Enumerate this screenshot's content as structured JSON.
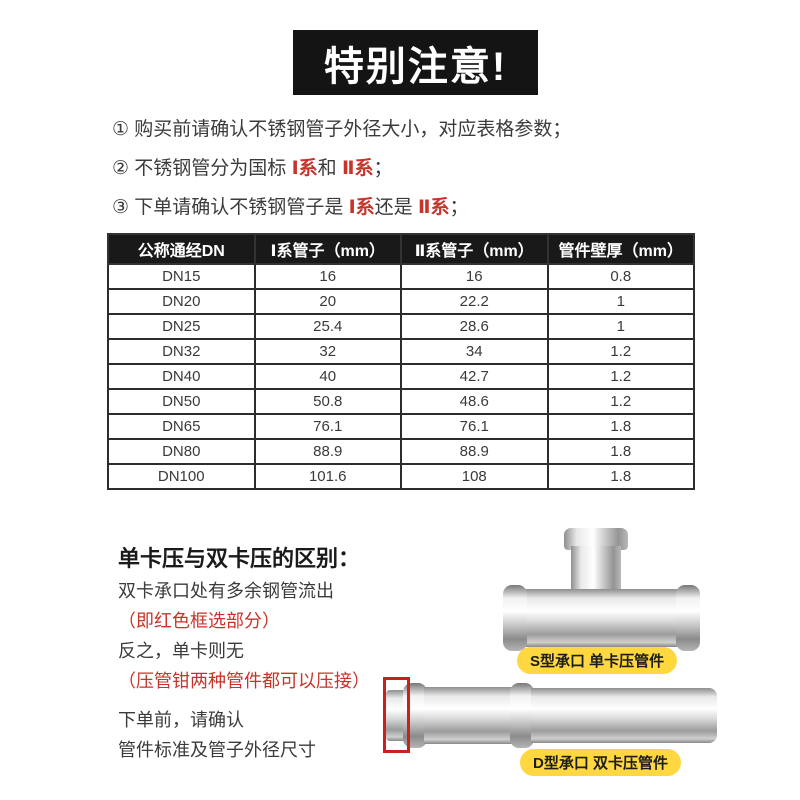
{
  "banner": {
    "title": "特别注意!"
  },
  "notes": [
    {
      "parts": [
        {
          "text": "① 购买前请确认不锈钢管子外径大小，对应表格参数；",
          "red": false
        }
      ]
    },
    {
      "parts": [
        {
          "text": "② 不锈钢管分为国标 ",
          "red": false
        },
        {
          "text": "Ⅰ系",
          "red": true
        },
        {
          "text": "和 ",
          "red": false
        },
        {
          "text": "Ⅱ系",
          "red": true
        },
        {
          "text": "；",
          "red": false
        }
      ]
    },
    {
      "parts": [
        {
          "text": "③ 下单请确认不锈钢管子是 ",
          "red": false
        },
        {
          "text": "Ⅰ系",
          "red": true
        },
        {
          "text": "还是 ",
          "red": false
        },
        {
          "text": "Ⅱ系",
          "red": true
        },
        {
          "text": "；",
          "red": false
        }
      ]
    }
  ],
  "table": {
    "headers": [
      "公称通经DN",
      "Ⅰ系管子（mm）",
      "Ⅱ系管子（mm）",
      "管件壁厚（mm）"
    ],
    "rows": [
      [
        "DN15",
        "16",
        "16",
        "0.8"
      ],
      [
        "DN20",
        "20",
        "22.2",
        "1"
      ],
      [
        "DN25",
        "25.4",
        "28.6",
        "1"
      ],
      [
        "DN32",
        "32",
        "34",
        "1.2"
      ],
      [
        "DN40",
        "40",
        "42.7",
        "1.2"
      ],
      [
        "DN50",
        "50.8",
        "48.6",
        "1.2"
      ],
      [
        "DN65",
        "76.1",
        "76.1",
        "1.8"
      ],
      [
        "DN80",
        "88.9",
        "88.9",
        "1.8"
      ],
      [
        "DN100",
        "101.6",
        "108",
        "1.8"
      ]
    ]
  },
  "section": {
    "heading": "单卡压与双卡压的区别：",
    "lines": [
      {
        "text": "双卡承口处有多余钢管流出",
        "red": false
      },
      {
        "text": "（即红色框选部分）",
        "red": true
      },
      {
        "text": "反之，单卡则无",
        "red": false
      },
      {
        "text": "（压管钳两种管件都可以压接）",
        "red": true
      },
      {
        "text": "下单前，请确认",
        "red": false
      },
      {
        "text": "管件标准及管子外径尺寸",
        "red": false
      }
    ]
  },
  "labels": {
    "single_press": "S型承口 单卡压管件",
    "double_press": "D型承口 双卡压管件"
  },
  "colors": {
    "accent_red": "#c6342a",
    "highlight_box_red": "#c8201d",
    "label_yellow": "#ffd741",
    "banner_black": "#141414",
    "table_border": "#2d2d2d"
  }
}
